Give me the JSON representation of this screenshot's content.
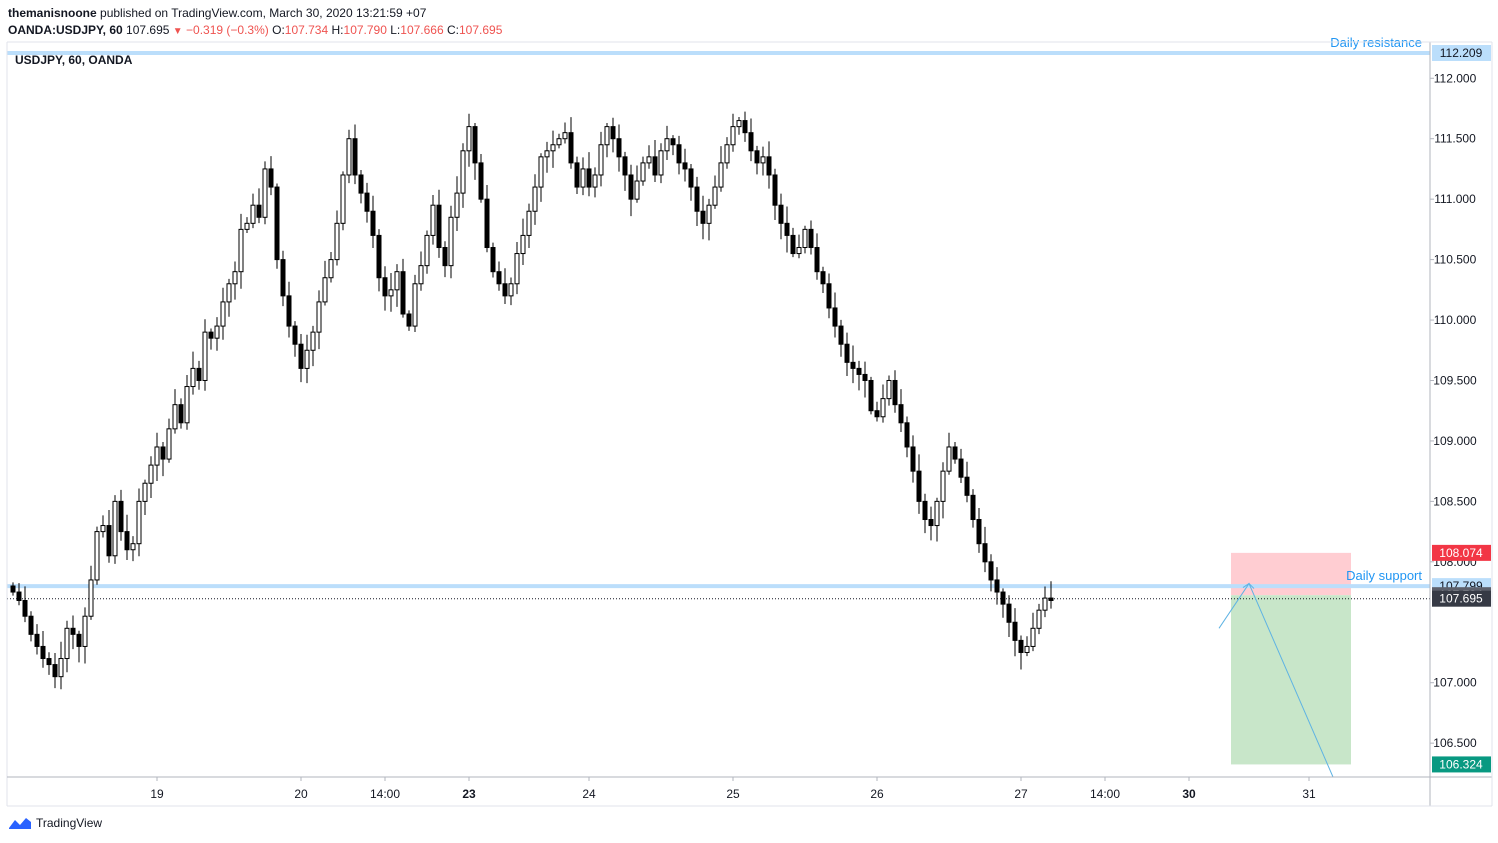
{
  "header": {
    "author": "themanisnoone",
    "published": "published on TradingView.com, March 30, 2020 13:21:59 +07",
    "symbol_label": "OANDA:USDJPY, 60",
    "last": "107.695",
    "change_arrow": "▼",
    "change": "−0.319 (−0.3%)",
    "o_label": "O:",
    "o_value": "107.734",
    "h_label": "H:",
    "h_value": "107.790",
    "l_label": "L:",
    "l_value": "107.666",
    "c_label": "C:",
    "c_value": "107.695"
  },
  "legend": {
    "text": "USDJPY, 60, OANDA"
  },
  "footer": {
    "brand": "TradingView"
  },
  "colors": {
    "up": "#ffffff",
    "down": "#000000",
    "wick": "#000000",
    "level_line": "#bbdefb",
    "level_text": "#2196f3",
    "stop_zone": "#ffcdd2",
    "target_zone": "#c8e6c9",
    "stop_badge": "#f23645",
    "target_badge": "#089981",
    "dark_badge": "#363a45"
  },
  "chart_data": {
    "type": "candlestick",
    "symbol": "USDJPY",
    "interval": "60",
    "ylim": [
      106.22,
      112.3
    ],
    "y_ticks": [
      "112.000",
      "111.500",
      "111.000",
      "110.500",
      "110.000",
      "109.500",
      "109.000",
      "108.500",
      "108.000",
      "107.000",
      "106.500"
    ],
    "x_ticks": [
      {
        "label": "19",
        "i": 24,
        "bold": false
      },
      {
        "label": "20",
        "i": 48,
        "bold": false
      },
      {
        "label": "14:00",
        "i": 62,
        "bold": false
      },
      {
        "label": "23",
        "i": 76,
        "bold": true
      },
      {
        "label": "24",
        "i": 96,
        "bold": false
      },
      {
        "label": "25",
        "i": 120,
        "bold": false
      },
      {
        "label": "26",
        "i": 144,
        "bold": false
      },
      {
        "label": "27",
        "i": 168,
        "bold": false
      },
      {
        "label": "14:00",
        "i": 182,
        "bold": false
      },
      {
        "label": "30",
        "i": 196,
        "bold": true
      },
      {
        "label": "31",
        "i": 216,
        "bold": false
      }
    ],
    "close_path": [
      107.75,
      107.68,
      107.55,
      107.4,
      107.3,
      107.2,
      107.15,
      107.05,
      107.2,
      107.45,
      107.4,
      107.3,
      107.55,
      107.85,
      108.25,
      108.3,
      108.05,
      108.5,
      108.25,
      108.1,
      108.15,
      108.5,
      108.65,
      108.8,
      108.95,
      108.85,
      109.1,
      109.3,
      109.15,
      109.45,
      109.6,
      109.5,
      109.9,
      109.85,
      109.95,
      110.15,
      110.3,
      110.4,
      110.75,
      110.8,
      110.95,
      110.85,
      111.25,
      111.1,
      110.5,
      110.2,
      109.95,
      109.8,
      109.6,
      109.75,
      109.9,
      110.15,
      110.35,
      110.5,
      110.8,
      111.2,
      111.5,
      111.2,
      111.05,
      110.9,
      110.7,
      110.35,
      110.2,
      110.25,
      110.4,
      110.05,
      109.95,
      110.3,
      110.45,
      110.7,
      110.95,
      110.6,
      110.45,
      110.85,
      111.05,
      111.4,
      111.6,
      111.3,
      111.0,
      110.6,
      110.4,
      110.3,
      110.2,
      110.3,
      110.55,
      110.7,
      110.9,
      111.1,
      111.35,
      111.4,
      111.45,
      111.5,
      111.55,
      111.3,
      111.1,
      111.25,
      111.1,
      111.2,
      111.45,
      111.6,
      111.5,
      111.35,
      111.2,
      111.0,
      111.15,
      111.3,
      111.35,
      111.2,
      111.4,
      111.5,
      111.45,
      111.3,
      111.25,
      111.1,
      110.9,
      110.8,
      110.95,
      111.1,
      111.3,
      111.45,
      111.6,
      111.65,
      111.55,
      111.4,
      111.3,
      111.35,
      111.2,
      110.95,
      110.8,
      110.7,
      110.55,
      110.6,
      110.75,
      110.6,
      110.4,
      110.3,
      110.1,
      109.95,
      109.8,
      109.65,
      109.6,
      109.55,
      109.5,
      109.25,
      109.2,
      109.35,
      109.5,
      109.3,
      109.15,
      108.95,
      108.75,
      108.5,
      108.35,
      108.3,
      108.5,
      108.75,
      108.95,
      108.85,
      108.7,
      108.55,
      108.35,
      108.15,
      108.0,
      107.85,
      107.75,
      107.65,
      107.5,
      107.35,
      107.25,
      107.3,
      107.45,
      107.6,
      107.7,
      107.68
    ],
    "levels": [
      {
        "label": "Daily resistance",
        "value": 112.209,
        "badge": "112.209",
        "text_pos": "above"
      },
      {
        "label": "Daily support",
        "value": 107.799,
        "badge": "107.799",
        "text_pos": "above"
      }
    ],
    "last_line": {
      "value": 107.695,
      "badge": "107.695"
    },
    "position": {
      "type": "short",
      "entry": 107.724,
      "entry_badge": "107.724",
      "stop": 108.074,
      "stop_badge": "108.074",
      "target": 106.324,
      "target_badge": "106.324"
    },
    "projection": [
      {
        "i": 201,
        "y": 107.45
      },
      {
        "i": 206,
        "y": 107.82
      },
      {
        "i": 220,
        "y": 106.22
      }
    ]
  }
}
